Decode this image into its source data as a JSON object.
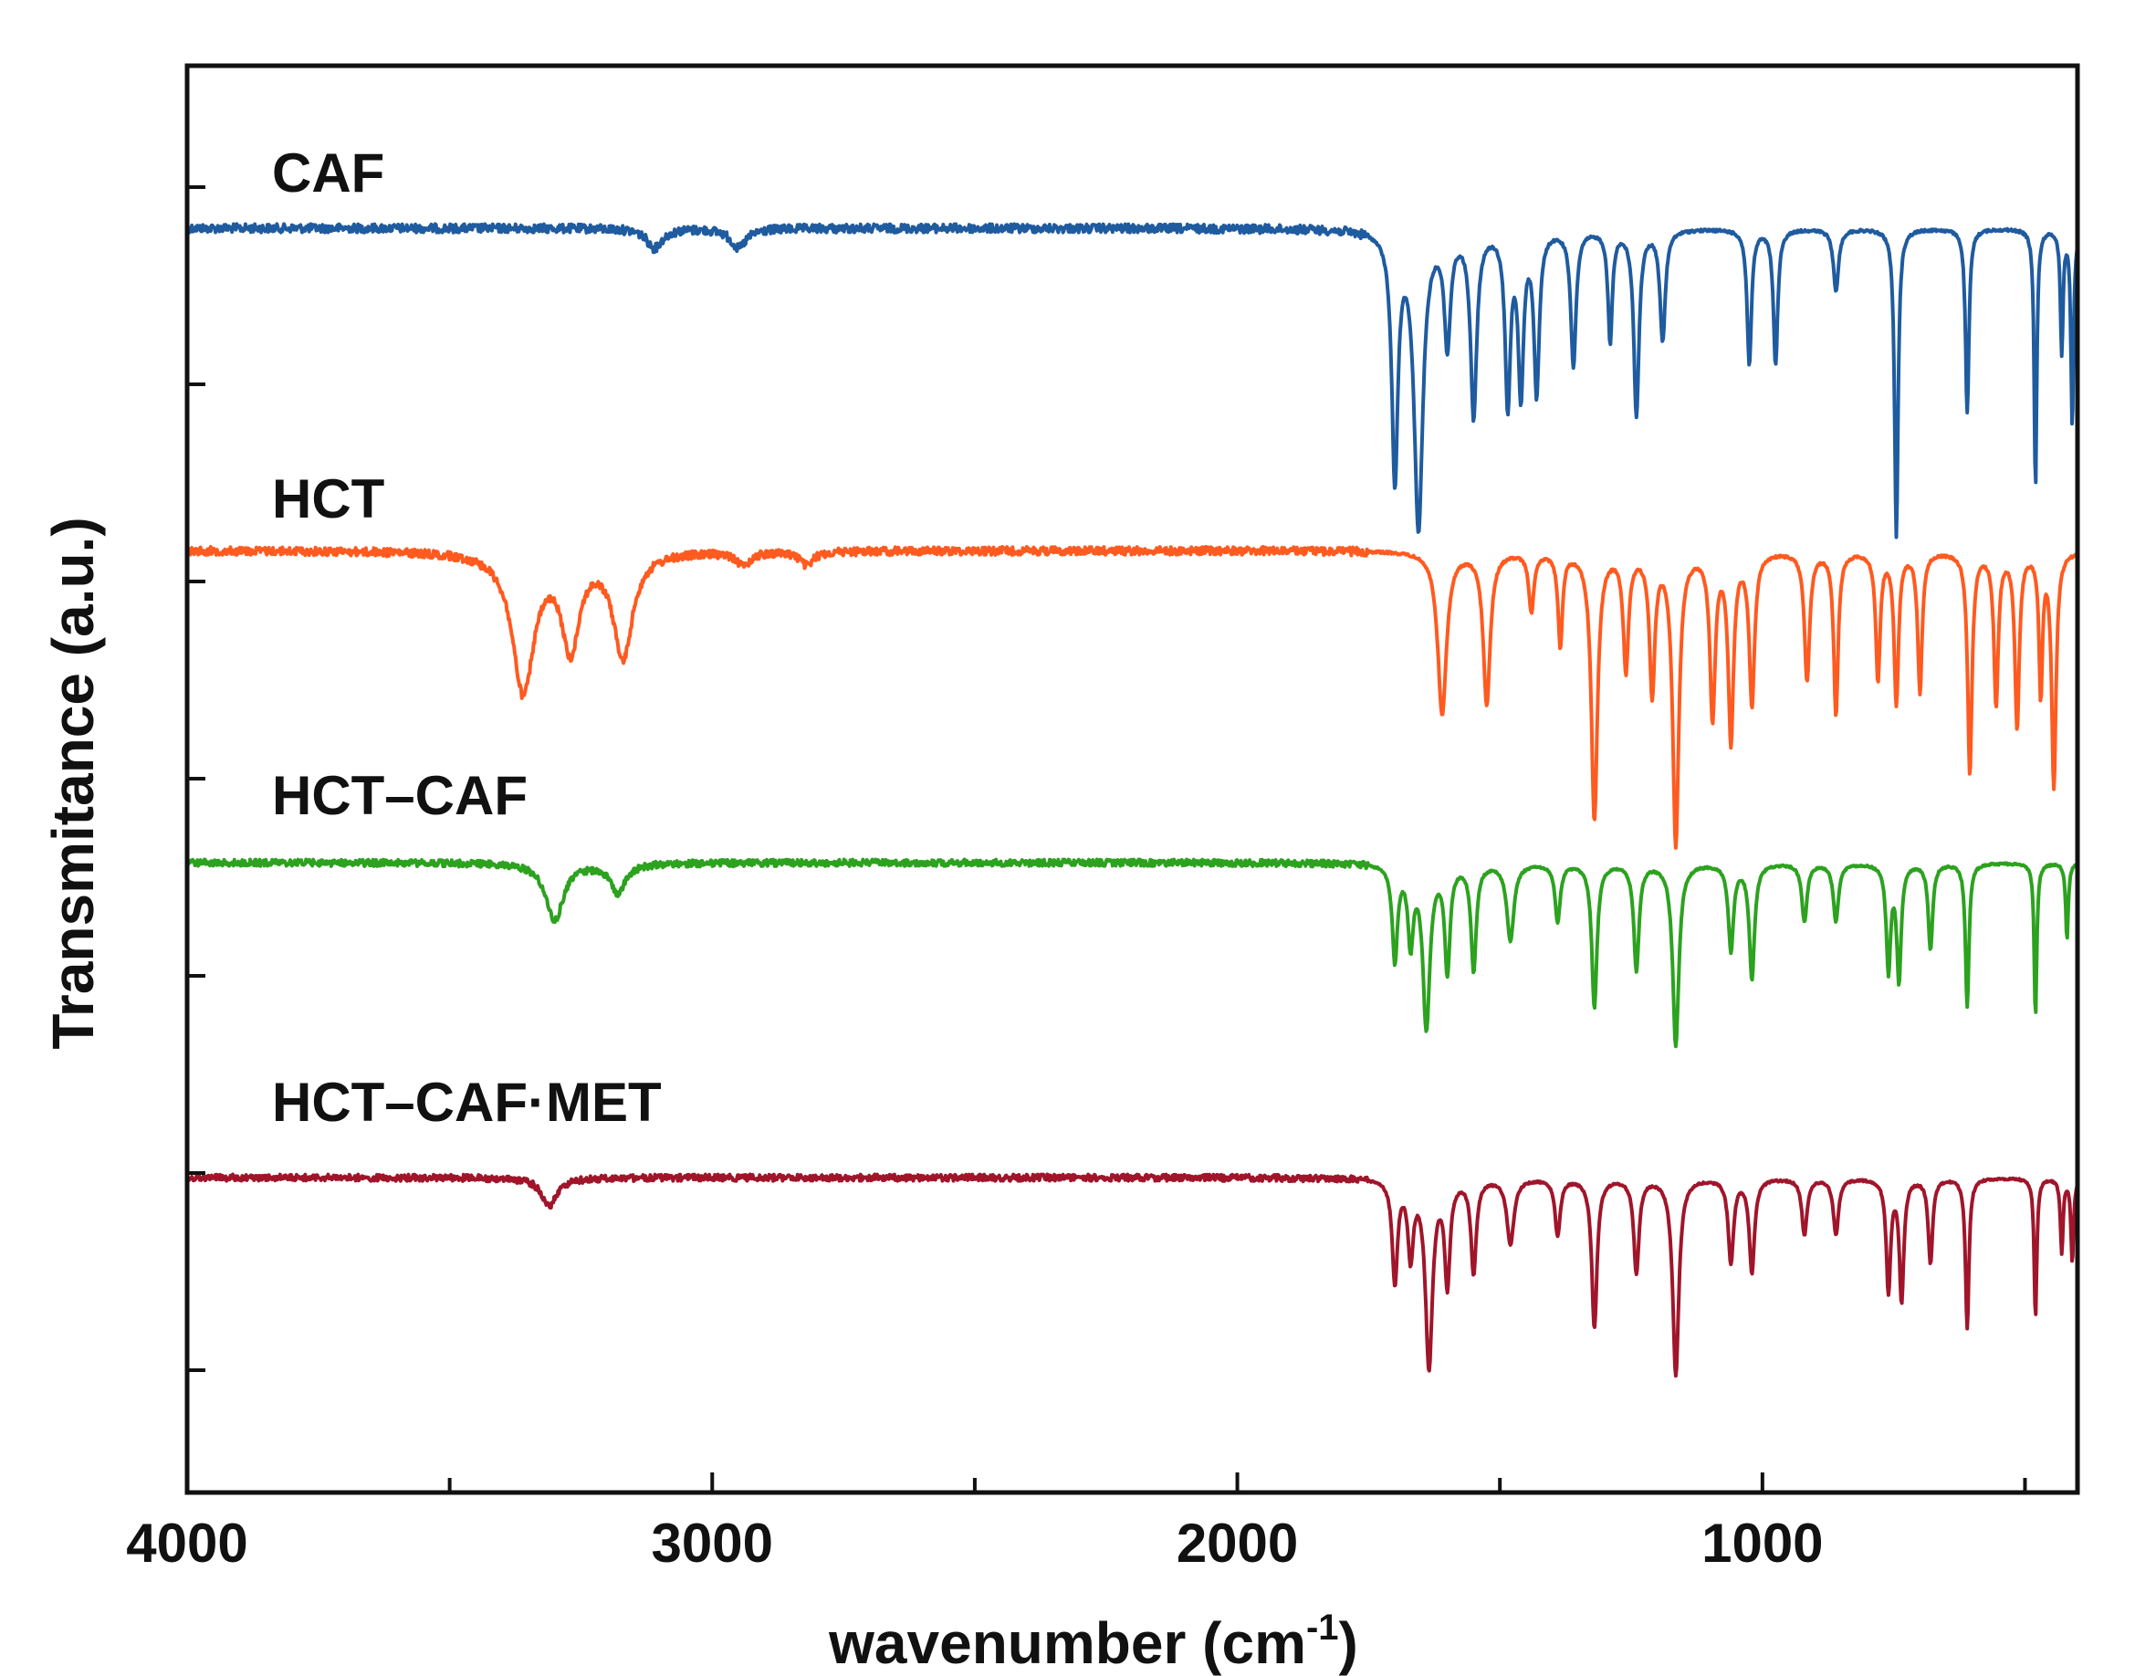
{
  "chart_data": {
    "type": "line",
    "title": "",
    "xlabel": "wavenumber (cm",
    "xlabel_sup": "-1",
    "xlabel_close": ")",
    "ylabel": "Transmitance (a.u.)",
    "xlim": [
      4000,
      400
    ],
    "x_ticks": [
      4000,
      3000,
      2000,
      1000
    ],
    "x_tick_labels": [
      "4000",
      "3000",
      "2000",
      "1000"
    ],
    "x_minor_ticks": [
      3500,
      2500,
      1500,
      500
    ],
    "y_ticks_count": 7,
    "y_labels_shown": false,
    "series": [
      {
        "name": "CAF",
        "color": "#1f5b9f",
        "baseline": 0.0,
        "bands": [
          {
            "wn": 3110,
            "depth": 0.08,
            "width": 18
          },
          {
            "wn": 2950,
            "depth": 0.08,
            "width": 18
          },
          {
            "wn": 1700,
            "depth": 1.0,
            "width": 7
          },
          {
            "wn": 1655,
            "depth": 1.2,
            "width": 10
          },
          {
            "wn": 1600,
            "depth": 0.45,
            "width": 7
          },
          {
            "wn": 1550,
            "depth": 0.75,
            "width": 7
          },
          {
            "wn": 1485,
            "depth": 0.7,
            "width": 6
          },
          {
            "wn": 1460,
            "depth": 0.65,
            "width": 6
          },
          {
            "wn": 1430,
            "depth": 0.65,
            "width": 6
          },
          {
            "wn": 1360,
            "depth": 0.55,
            "width": 6
          },
          {
            "wn": 1290,
            "depth": 0.45,
            "width": 5
          },
          {
            "wn": 1240,
            "depth": 0.75,
            "width": 6
          },
          {
            "wn": 1190,
            "depth": 0.45,
            "width": 6
          },
          {
            "wn": 1025,
            "depth": 0.55,
            "width": 5
          },
          {
            "wn": 975,
            "depth": 0.55,
            "width": 5
          },
          {
            "wn": 860,
            "depth": 0.25,
            "width": 6
          },
          {
            "wn": 745,
            "depth": 1.25,
            "width": 4
          },
          {
            "wn": 610,
            "depth": 0.75,
            "width": 4
          },
          {
            "wn": 480,
            "depth": 1.05,
            "width": 3
          },
          {
            "wn": 430,
            "depth": 0.5,
            "width": 3
          },
          {
            "wn": 410,
            "depth": 0.8,
            "width": 3
          }
        ]
      },
      {
        "name": "HCT",
        "color": "#ff5a1f",
        "baseline": 0.0,
        "bands": [
          {
            "wn": 3360,
            "depth": 0.6,
            "width": 25
          },
          {
            "wn": 3270,
            "depth": 0.4,
            "width": 20
          },
          {
            "wn": 3170,
            "depth": 0.45,
            "width": 22
          },
          {
            "wn": 2940,
            "depth": 0.06,
            "width": 15
          },
          {
            "wn": 2820,
            "depth": 0.06,
            "width": 15
          },
          {
            "wn": 1610,
            "depth": 0.7,
            "width": 10
          },
          {
            "wn": 1525,
            "depth": 0.65,
            "width": 8
          },
          {
            "wn": 1440,
            "depth": 0.25,
            "width": 6
          },
          {
            "wn": 1385,
            "depth": 0.4,
            "width": 5
          },
          {
            "wn": 1320,
            "depth": 1.15,
            "width": 7
          },
          {
            "wn": 1260,
            "depth": 0.5,
            "width": 6
          },
          {
            "wn": 1210,
            "depth": 0.6,
            "width": 6
          },
          {
            "wn": 1165,
            "depth": 1.25,
            "width": 7
          },
          {
            "wn": 1095,
            "depth": 0.7,
            "width": 6
          },
          {
            "wn": 1060,
            "depth": 0.8,
            "width": 6
          },
          {
            "wn": 1020,
            "depth": 0.65,
            "width": 6
          },
          {
            "wn": 915,
            "depth": 0.55,
            "width": 6
          },
          {
            "wn": 860,
            "depth": 0.7,
            "width": 5
          },
          {
            "wn": 780,
            "depth": 0.55,
            "width": 5
          },
          {
            "wn": 745,
            "depth": 0.65,
            "width": 5
          },
          {
            "wn": 700,
            "depth": 0.6,
            "width": 5
          },
          {
            "wn": 605,
            "depth": 0.95,
            "width": 5
          },
          {
            "wn": 555,
            "depth": 0.65,
            "width": 5
          },
          {
            "wn": 515,
            "depth": 0.75,
            "width": 5
          },
          {
            "wn": 470,
            "depth": 0.6,
            "width": 4
          },
          {
            "wn": 445,
            "depth": 1.0,
            "width": 5
          }
        ]
      },
      {
        "name": "HCT–CAF",
        "color": "#2ca21f",
        "baseline": 0.0,
        "bands": [
          {
            "wn": 3300,
            "depth": 0.3,
            "width": 20
          },
          {
            "wn": 3180,
            "depth": 0.15,
            "width": 18
          },
          {
            "wn": 1700,
            "depth": 0.5,
            "width": 6
          },
          {
            "wn": 1670,
            "depth": 0.4,
            "width": 6
          },
          {
            "wn": 1640,
            "depth": 0.85,
            "width": 8
          },
          {
            "wn": 1600,
            "depth": 0.55,
            "width": 6
          },
          {
            "wn": 1550,
            "depth": 0.55,
            "width": 6
          },
          {
            "wn": 1480,
            "depth": 0.4,
            "width": 8
          },
          {
            "wn": 1390,
            "depth": 0.3,
            "width": 6
          },
          {
            "wn": 1320,
            "depth": 0.75,
            "width": 6
          },
          {
            "wn": 1240,
            "depth": 0.55,
            "width": 6
          },
          {
            "wn": 1165,
            "depth": 0.95,
            "width": 7
          },
          {
            "wn": 1060,
            "depth": 0.45,
            "width": 6
          },
          {
            "wn": 1020,
            "depth": 0.6,
            "width": 6
          },
          {
            "wn": 920,
            "depth": 0.3,
            "width": 6
          },
          {
            "wn": 860,
            "depth": 0.3,
            "width": 6
          },
          {
            "wn": 760,
            "depth": 0.55,
            "width": 5
          },
          {
            "wn": 740,
            "depth": 0.6,
            "width": 5
          },
          {
            "wn": 680,
            "depth": 0.45,
            "width": 5
          },
          {
            "wn": 610,
            "depth": 0.75,
            "width": 4
          },
          {
            "wn": 480,
            "depth": 0.8,
            "width": 3
          },
          {
            "wn": 420,
            "depth": 0.4,
            "width": 3
          }
        ]
      },
      {
        "name": "HCT–CAF·MET",
        "color": "#a0152a",
        "baseline": 0.0,
        "bands": [
          {
            "wn": 3310,
            "depth": 0.15,
            "width": 18
          },
          {
            "wn": 1700,
            "depth": 0.55,
            "width": 6
          },
          {
            "wn": 1670,
            "depth": 0.4,
            "width": 6
          },
          {
            "wn": 1635,
            "depth": 1.0,
            "width": 8
          },
          {
            "wn": 1600,
            "depth": 0.55,
            "width": 6
          },
          {
            "wn": 1550,
            "depth": 0.5,
            "width": 6
          },
          {
            "wn": 1480,
            "depth": 0.35,
            "width": 8
          },
          {
            "wn": 1390,
            "depth": 0.3,
            "width": 6
          },
          {
            "wn": 1320,
            "depth": 0.8,
            "width": 6
          },
          {
            "wn": 1240,
            "depth": 0.5,
            "width": 6
          },
          {
            "wn": 1165,
            "depth": 1.05,
            "width": 7
          },
          {
            "wn": 1060,
            "depth": 0.45,
            "width": 6
          },
          {
            "wn": 1020,
            "depth": 0.5,
            "width": 6
          },
          {
            "wn": 920,
            "depth": 0.3,
            "width": 6
          },
          {
            "wn": 860,
            "depth": 0.3,
            "width": 6
          },
          {
            "wn": 760,
            "depth": 0.6,
            "width": 5
          },
          {
            "wn": 735,
            "depth": 0.65,
            "width": 5
          },
          {
            "wn": 680,
            "depth": 0.45,
            "width": 5
          },
          {
            "wn": 610,
            "depth": 0.8,
            "width": 4
          },
          {
            "wn": 480,
            "depth": 0.75,
            "width": 3
          },
          {
            "wn": 430,
            "depth": 0.4,
            "width": 3
          },
          {
            "wn": 410,
            "depth": 0.45,
            "width": 3
          }
        ]
      }
    ]
  }
}
